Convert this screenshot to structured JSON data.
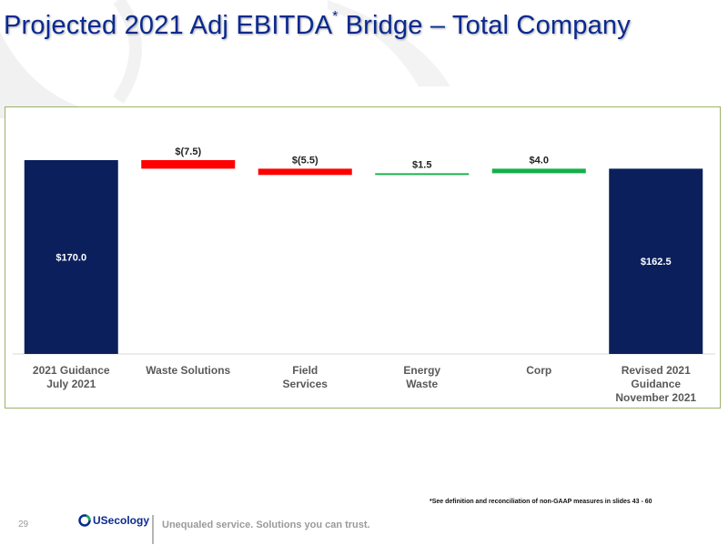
{
  "title": {
    "main": "Projected 2021 Adj EBITDA",
    "sup": "*",
    "rest": " Bridge – Total Company"
  },
  "chart_data": {
    "type": "bar",
    "subtype": "waterfall",
    "categories": [
      [
        "2021 Guidance",
        "July 2021"
      ],
      [
        "Waste Solutions"
      ],
      [
        "Field",
        "Services"
      ],
      [
        "Energy",
        "Waste"
      ],
      [
        "Corp"
      ],
      [
        "Revised 2021",
        "Guidance",
        "November 2021"
      ]
    ],
    "steps": [
      {
        "kind": "total",
        "value": 170.0,
        "label": "$170.0",
        "color": "#0b1f5c"
      },
      {
        "kind": "delta",
        "value": -7.5,
        "label": "$(7.5)",
        "color": "#ff0000"
      },
      {
        "kind": "delta",
        "value": -5.5,
        "label": "$(5.5)",
        "color": "#ff0000"
      },
      {
        "kind": "delta",
        "value": 1.5,
        "label": "$1.5",
        "color": "#14b04a"
      },
      {
        "kind": "delta",
        "value": 4.0,
        "label": "$4.0",
        "color": "#14b04a"
      },
      {
        "kind": "total",
        "value": 162.5,
        "label": "$162.5",
        "color": "#0b1f5c"
      }
    ],
    "ylim": [
      0,
      175
    ],
    "xlabel": "",
    "ylabel": ""
  },
  "footnote": "*See definition and reconciliation of non-GAAP measures in slides 43 - 60",
  "footer": {
    "page_number": "29",
    "logo_us": "US",
    "logo_rest": "ecology",
    "tagline": "Unequaled service. Solutions you can trust."
  }
}
